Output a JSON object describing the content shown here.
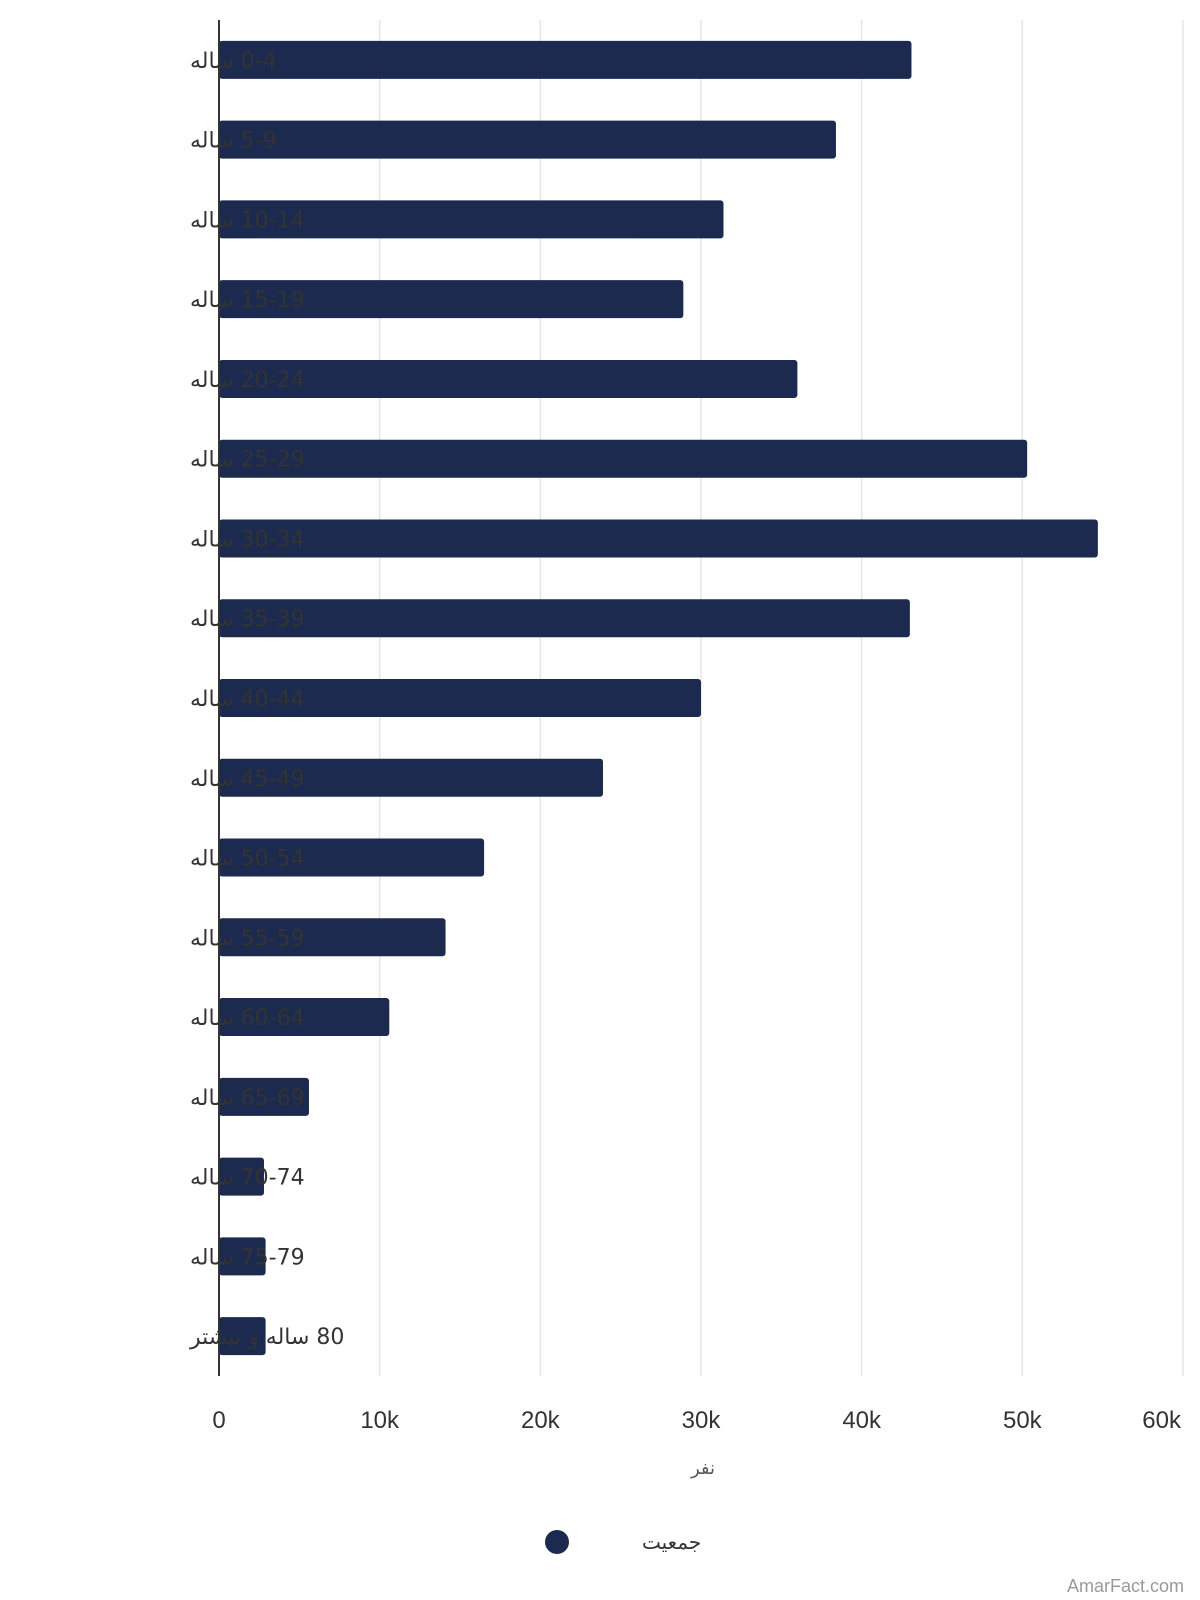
{
  "chart_data": {
    "type": "bar",
    "orientation": "horizontal",
    "categories": [
      "0-4 ساله",
      "5-9 ساله",
      "10-14 ساله",
      "15-19 ساله",
      "20-24 ساله",
      "25-29 ساله",
      "30-34 ساله",
      "35-39 ساله",
      "40-44 ساله",
      "45-49 ساله",
      "50-54 ساله",
      "55-59 ساله",
      "60-64 ساله",
      "65-69 ساله",
      "70-74 ساله",
      "75-79 ساله",
      "80 ساله و بیشتر"
    ],
    "series": [
      {
        "name": "جمعیت",
        "color": "#1b2a4e",
        "values": [
          43100,
          38400,
          31400,
          28900,
          36000,
          50300,
          54700,
          43000,
          30000,
          23900,
          16500,
          14100,
          10600,
          5600,
          2800,
          2900,
          2900
        ]
      }
    ],
    "xlabel": "نفر",
    "ylabel": "",
    "xlim": [
      0,
      60000
    ],
    "ticks": [
      "0",
      "10k",
      "20k",
      "30k",
      "40k",
      "50k",
      "60k"
    ],
    "grid": true,
    "legend_position": "bottom"
  },
  "watermark": "AmarFact.com",
  "colors": {
    "bar": "#1b2a4e",
    "grid": "#e6e6e6",
    "axis": "#333333"
  }
}
